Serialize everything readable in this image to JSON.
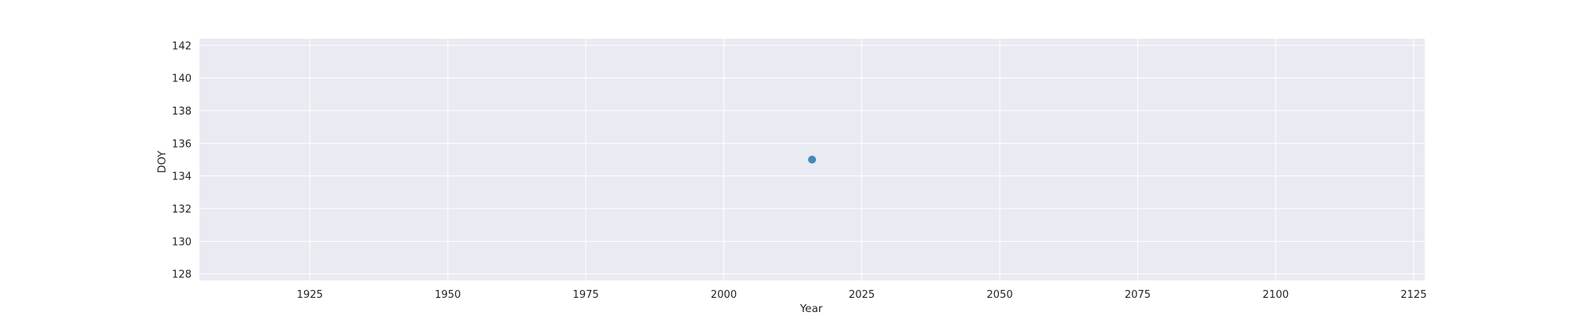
{
  "chart_data": {
    "type": "scatter",
    "title": "",
    "xlabel": "Year",
    "ylabel": "DOY",
    "xlim": [
      1905,
      2127
    ],
    "ylim": [
      127.6,
      142.4
    ],
    "xticks": [
      1925,
      1950,
      1975,
      2000,
      2025,
      2050,
      2075,
      2100,
      2125
    ],
    "yticks": [
      128,
      130,
      132,
      134,
      136,
      138,
      140,
      142
    ],
    "xtick_labels": [
      "1925",
      "1950",
      "1975",
      "2000",
      "2025",
      "2050",
      "2075",
      "2100",
      "2125"
    ],
    "ytick_labels": [
      "128",
      "130",
      "132",
      "134",
      "136",
      "138",
      "140",
      "142"
    ],
    "grid": true,
    "background_color": "#eaeaf2",
    "grid_color": "#ffffff",
    "series": [
      {
        "name": "DOY",
        "color": "#3b84b8",
        "points": [
          {
            "x": 2016,
            "y": 135
          }
        ]
      }
    ]
  }
}
